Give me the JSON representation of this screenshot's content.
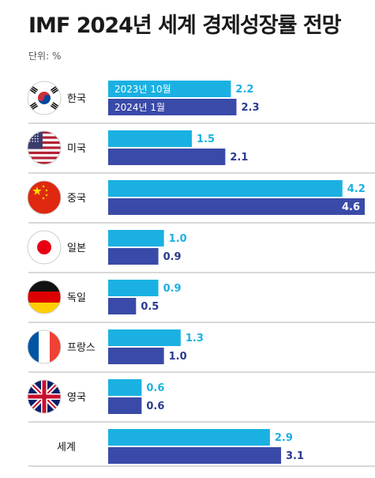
{
  "header": {
    "title": "IMF 2024년 세계 경제성장률 전망",
    "unit": "단위: %"
  },
  "colors": {
    "series_a": "#1ab1e2",
    "series_b": "#3a4aa8",
    "value_a_text": "#1ab1e2",
    "value_b_text": "#ffffff",
    "value_b_text_out": "#2a3a90",
    "divider": "#999999"
  },
  "chart_data": {
    "type": "bar",
    "orientation": "horizontal",
    "title": "IMF 2024년 세계 경제성장률 전망",
    "unit": "단위: %",
    "categories": [
      "한국",
      "미국",
      "중국",
      "일본",
      "독일",
      "프랑스",
      "영국",
      "세계"
    ],
    "flags": [
      "korea-flag-icon",
      "usa-flag-icon",
      "china-flag-icon",
      "japan-flag-icon",
      "germany-flag-icon",
      "france-flag-icon",
      "uk-flag-icon",
      ""
    ],
    "series": [
      {
        "name": "2023년 10월",
        "values": [
          2.2,
          1.5,
          4.2,
          1.0,
          0.9,
          1.3,
          0.6,
          2.9
        ]
      },
      {
        "name": "2024년 1월",
        "values": [
          2.3,
          2.1,
          4.6,
          0.9,
          0.5,
          1.0,
          0.6,
          3.1
        ]
      }
    ],
    "value_labels": [
      [
        "2.2",
        "1.5",
        "4.2",
        "1.0",
        "0.9",
        "1.3",
        "0.6",
        "2.9"
      ],
      [
        "2.3",
        "2.1",
        "4.6",
        "0.9",
        "0.5",
        "1.0",
        "0.6",
        "3.1"
      ]
    ],
    "xlim": [
      0,
      4.6
    ]
  }
}
